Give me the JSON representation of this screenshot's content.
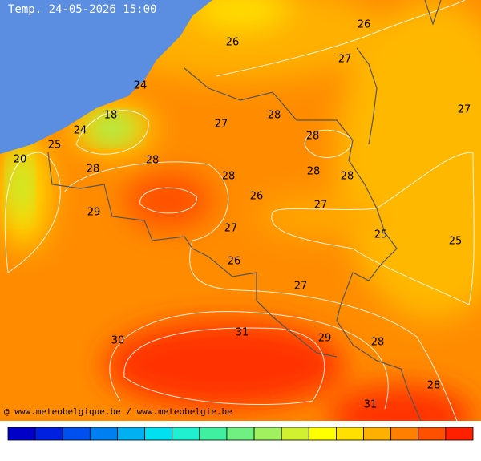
{
  "header": {
    "title": "Temp. 24-05-2026 15:00"
  },
  "contour_labels": [
    26,
    26,
    27,
    24,
    27,
    18,
    28,
    27,
    24,
    28,
    25,
    20,
    28,
    28,
    28,
    28,
    28,
    26,
    27,
    29,
    27,
    25,
    25,
    26,
    27,
    31,
    29,
    30,
    28,
    28,
    31
  ],
  "footer": {
    "credit": "@ www.meteobelgique.be / www.meteobelgie.be"
  }
}
